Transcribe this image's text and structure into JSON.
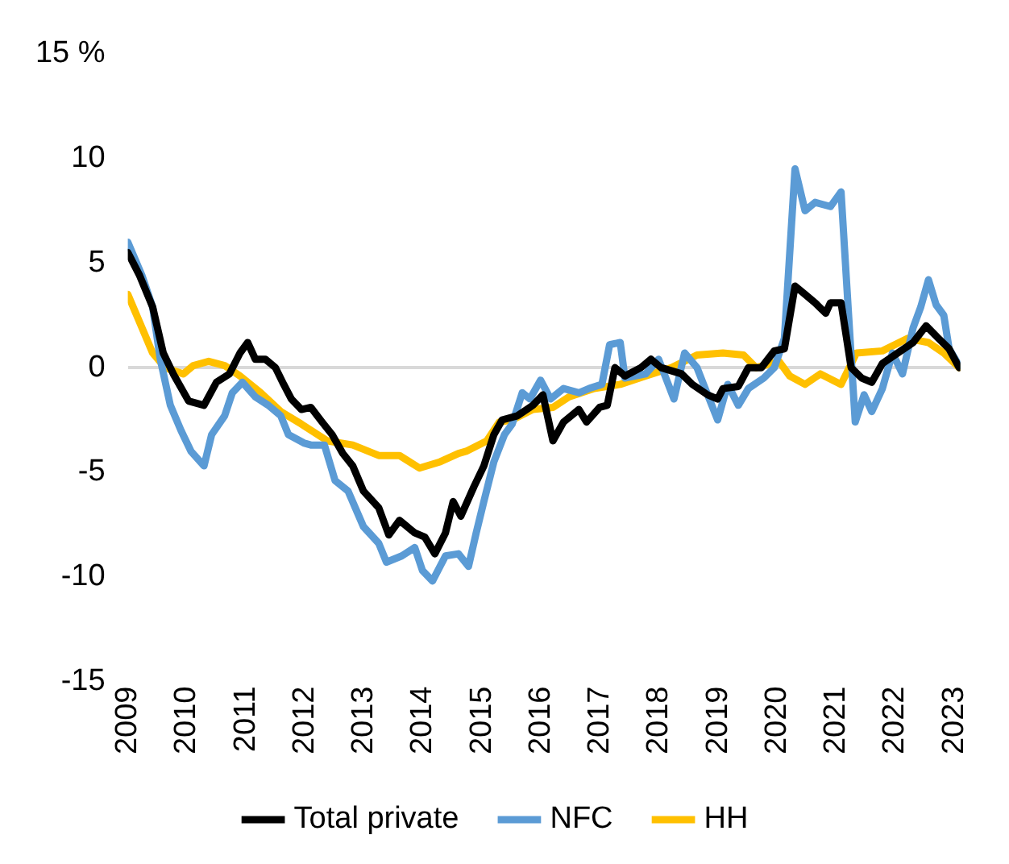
{
  "chart_data": {
    "type": "line",
    "xlim": [
      2009,
      2023.1
    ],
    "xticks": [
      2009,
      2010,
      2011,
      2012,
      2013,
      2014,
      2015,
      2016,
      2017,
      2018,
      2019,
      2020,
      2021,
      2022,
      2023
    ],
    "ylim": [
      -15,
      15
    ],
    "yticks": [
      -15,
      -10,
      -5,
      0,
      5,
      10,
      {
        "value": 15,
        "label": "15 %"
      }
    ],
    "legend": "bottom",
    "marker": "none",
    "line_style": "solid",
    "series": [
      {
        "name": "Total private",
        "color": "#000000",
        "x": [
          2009.0,
          2009.2,
          2009.42,
          2009.6,
          2009.77,
          2010.03,
          2010.29,
          2010.5,
          2010.72,
          2010.9,
          2011.03,
          2011.16,
          2011.33,
          2011.5,
          2011.64,
          2011.77,
          2011.94,
          2012.1,
          2012.29,
          2012.46,
          2012.64,
          2012.81,
          2012.99,
          2013.25,
          2013.42,
          2013.6,
          2013.86,
          2014.03,
          2014.2,
          2014.38,
          2014.51,
          2014.64,
          2014.86,
          2015.03,
          2015.2,
          2015.34,
          2015.6,
          2015.86,
          2016.03,
          2016.2,
          2016.38,
          2016.64,
          2016.77,
          2016.99,
          2017.12,
          2017.25,
          2017.42,
          2017.69,
          2017.86,
          2018.03,
          2018.38,
          2018.56,
          2018.82,
          2018.99,
          2019.08,
          2019.34,
          2019.51,
          2019.73,
          2019.95,
          2020.12,
          2020.3,
          2020.47,
          2020.64,
          2020.82,
          2020.9,
          2021.08,
          2021.25,
          2021.43,
          2021.6,
          2021.78,
          2022.04,
          2022.3,
          2022.52,
          2022.73,
          2022.91,
          2023.08
        ],
        "values": [
          5.5,
          4.4,
          2.9,
          0.7,
          -0.3,
          -1.6,
          -1.8,
          -0.7,
          -0.3,
          0.7,
          1.2,
          0.4,
          0.4,
          0,
          -0.8,
          -1.5,
          -2.0,
          -1.9,
          -2.6,
          -3.2,
          -4.1,
          -4.7,
          -5.9,
          -6.7,
          -8.0,
          -7.3,
          -7.9,
          -8.1,
          -8.9,
          -7.9,
          -6.4,
          -7.1,
          -5.7,
          -4.7,
          -3.2,
          -2.5,
          -2.3,
          -1.8,
          -1.3,
          -3.5,
          -2.6,
          -2.0,
          -2.6,
          -1.9,
          -1.8,
          0,
          -0.4,
          0,
          0.4,
          0,
          -0.3,
          -0.8,
          -1.3,
          -1.5,
          -1.0,
          -0.9,
          0,
          0,
          0.8,
          0.9,
          3.9,
          3.5,
          3.1,
          2.6,
          3.1,
          3.1,
          0,
          -0.5,
          -0.7,
          0.2,
          0.7,
          1.2,
          2.0,
          1.4,
          0.9,
          0
        ]
      },
      {
        "name": "NFC",
        "color": "#5b9bd5",
        "x": [
          2009.0,
          2009.24,
          2009.42,
          2009.55,
          2009.72,
          2009.9,
          2010.07,
          2010.29,
          2010.42,
          2010.64,
          2010.77,
          2010.94,
          2011.16,
          2011.38,
          2011.59,
          2011.72,
          2011.98,
          2012.1,
          2012.33,
          2012.51,
          2012.73,
          2012.99,
          2013.25,
          2013.38,
          2013.64,
          2013.86,
          2013.99,
          2014.16,
          2014.38,
          2014.6,
          2014.77,
          2014.9,
          2015.03,
          2015.2,
          2015.38,
          2015.51,
          2015.68,
          2015.81,
          2015.99,
          2016.16,
          2016.38,
          2016.64,
          2016.81,
          2017.03,
          2017.16,
          2017.34,
          2017.42,
          2017.77,
          2017.99,
          2018.25,
          2018.43,
          2018.64,
          2018.82,
          2018.99,
          2019.16,
          2019.34,
          2019.51,
          2019.77,
          2019.95,
          2020.12,
          2020.3,
          2020.47,
          2020.64,
          2020.9,
          2021.08,
          2021.21,
          2021.32,
          2021.47,
          2021.6,
          2021.78,
          2021.95,
          2022.12,
          2022.3,
          2022.43,
          2022.56,
          2022.69,
          2022.82,
          2022.91,
          2023.08
        ],
        "values": [
          6.0,
          4.4,
          2.9,
          0.4,
          -1.8,
          -3.0,
          -4.0,
          -4.7,
          -3.2,
          -2.3,
          -1.2,
          -0.7,
          -1.4,
          -1.8,
          -2.3,
          -3.2,
          -3.6,
          -3.7,
          -3.7,
          -5.4,
          -5.9,
          -7.6,
          -8.4,
          -9.3,
          -9.0,
          -8.6,
          -9.7,
          -10.2,
          -9.0,
          -8.9,
          -9.5,
          -7.9,
          -6.4,
          -4.5,
          -3.2,
          -2.7,
          -1.2,
          -1.5,
          -0.6,
          -1.5,
          -1.0,
          -1.2,
          -1.0,
          -0.8,
          1.1,
          1.2,
          -0.5,
          -0.3,
          0.4,
          -1.5,
          0.7,
          0,
          -1.3,
          -2.5,
          -0.8,
          -1.8,
          -1.0,
          -0.5,
          0,
          1.4,
          9.5,
          7.5,
          7.9,
          7.7,
          8.4,
          2.4,
          -2.6,
          -1.3,
          -2.1,
          -1.0,
          0.7,
          -0.3,
          1.9,
          2.9,
          4.2,
          3.0,
          2.5,
          0.9,
          0.1
        ]
      },
      {
        "name": "HH",
        "color": "#ffc000",
        "x": [
          2009.0,
          2009.24,
          2009.42,
          2009.63,
          2009.94,
          2010.11,
          2010.37,
          2010.64,
          2010.9,
          2011.25,
          2011.59,
          2011.94,
          2012.38,
          2012.81,
          2013.25,
          2013.6,
          2013.94,
          2014.29,
          2014.6,
          2014.73,
          2015.08,
          2015.29,
          2015.51,
          2015.86,
          2016.2,
          2016.47,
          2016.9,
          2017.34,
          2017.77,
          2018.21,
          2018.64,
          2019.08,
          2019.43,
          2019.64,
          2020.03,
          2020.21,
          2020.47,
          2020.73,
          2021.08,
          2021.34,
          2021.78,
          2022.21,
          2022.56,
          2022.82,
          2023.08
        ],
        "values": [
          3.5,
          1.9,
          0.7,
          0,
          -0.3,
          0.1,
          0.3,
          0.1,
          -0.4,
          -1.2,
          -2.1,
          -2.7,
          -3.5,
          -3.7,
          -4.2,
          -4.2,
          -4.8,
          -4.5,
          -4.1,
          -4.0,
          -3.5,
          -2.6,
          -2.5,
          -2.0,
          -1.9,
          -1.4,
          -1.0,
          -0.8,
          -0.4,
          0,
          0.6,
          0.7,
          0.6,
          0,
          0.3,
          -0.4,
          -0.8,
          -0.3,
          -0.8,
          0.7,
          0.8,
          1.4,
          1.2,
          0.7,
          0
        ]
      }
    ]
  }
}
